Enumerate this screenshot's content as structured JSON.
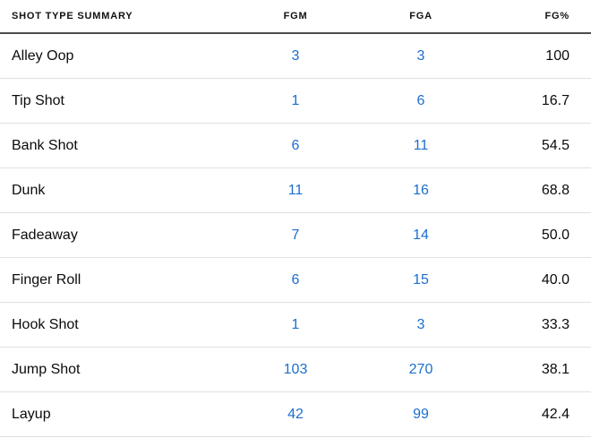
{
  "table": {
    "title": "SHOT TYPE SUMMARY",
    "columns": [
      "FGM",
      "FGA",
      "FG%"
    ],
    "rows": [
      {
        "shot_type": "Alley Oop",
        "fgm": "3",
        "fga": "3",
        "fg_pct": "100"
      },
      {
        "shot_type": "Tip Shot",
        "fgm": "1",
        "fga": "6",
        "fg_pct": "16.7"
      },
      {
        "shot_type": "Bank Shot",
        "fgm": "6",
        "fga": "11",
        "fg_pct": "54.5"
      },
      {
        "shot_type": "Dunk",
        "fgm": "11",
        "fga": "16",
        "fg_pct": "68.8"
      },
      {
        "shot_type": "Fadeaway",
        "fgm": "7",
        "fga": "14",
        "fg_pct": "50.0"
      },
      {
        "shot_type": "Finger Roll",
        "fgm": "6",
        "fga": "15",
        "fg_pct": "40.0"
      },
      {
        "shot_type": "Hook Shot",
        "fgm": "1",
        "fga": "3",
        "fg_pct": "33.3"
      },
      {
        "shot_type": "Jump Shot",
        "fgm": "103",
        "fga": "270",
        "fg_pct": "38.1"
      },
      {
        "shot_type": "Layup",
        "fgm": "42",
        "fga": "99",
        "fg_pct": "42.4"
      }
    ]
  },
  "colors": {
    "link_blue": "#1d6ecd",
    "text_black": "#0b0b0b",
    "row_border": "#e0e0e0",
    "header_border": "#4d4d4d"
  },
  "chart_data": {
    "type": "table",
    "title": "SHOT TYPE SUMMARY",
    "columns": [
      "Shot Type",
      "FGM",
      "FGA",
      "FG%"
    ],
    "rows": [
      [
        "Alley Oop",
        3,
        3,
        100
      ],
      [
        "Tip Shot",
        1,
        6,
        16.7
      ],
      [
        "Bank Shot",
        6,
        11,
        54.5
      ],
      [
        "Dunk",
        11,
        16,
        68.8
      ],
      [
        "Fadeaway",
        7,
        14,
        50.0
      ],
      [
        "Finger Roll",
        6,
        15,
        40.0
      ],
      [
        "Hook Shot",
        1,
        3,
        33.3
      ],
      [
        "Jump Shot",
        103,
        270,
        38.1
      ],
      [
        "Layup",
        42,
        99,
        42.4
      ]
    ]
  }
}
